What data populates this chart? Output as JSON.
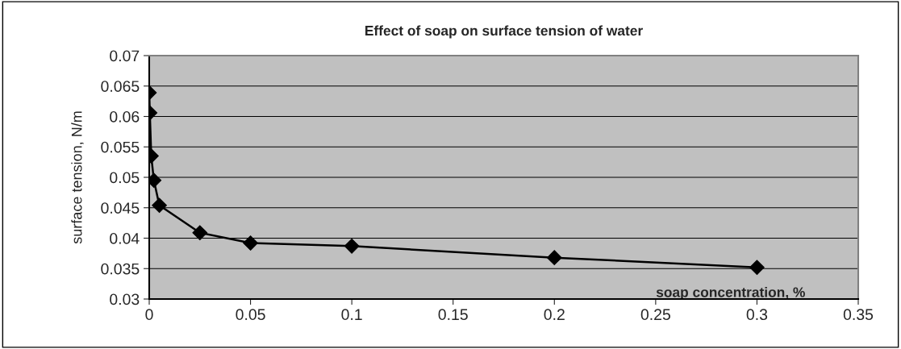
{
  "chart_data": {
    "type": "line",
    "title": "Effect of soap on surface tension of water",
    "xlabel": "soap concentration, %",
    "ylabel": "surface tension, N/m",
    "x": [
      0,
      0.0003,
      0.001,
      0.0023,
      0.005,
      0.025,
      0.05,
      0.1,
      0.2,
      0.3
    ],
    "series": [
      {
        "color": "#000000",
        "values": [
          0.0639,
          0.0606,
          0.0535,
          0.0495,
          0.0454,
          0.0409,
          0.0392,
          0.0387,
          0.0368,
          0.0352
        ]
      }
    ],
    "xlim": [
      0,
      0.35
    ],
    "xticks": [
      0,
      0.05,
      0.1,
      0.15,
      0.2,
      0.25,
      0.3,
      0.35
    ],
    "ylim": [
      0.03,
      0.07
    ],
    "yticks": [
      0.03,
      0.035,
      0.04,
      0.045,
      0.05,
      0.055,
      0.06,
      0.065,
      0.07
    ],
    "grid": "y",
    "marker": "diamond",
    "line_style": "solid"
  }
}
